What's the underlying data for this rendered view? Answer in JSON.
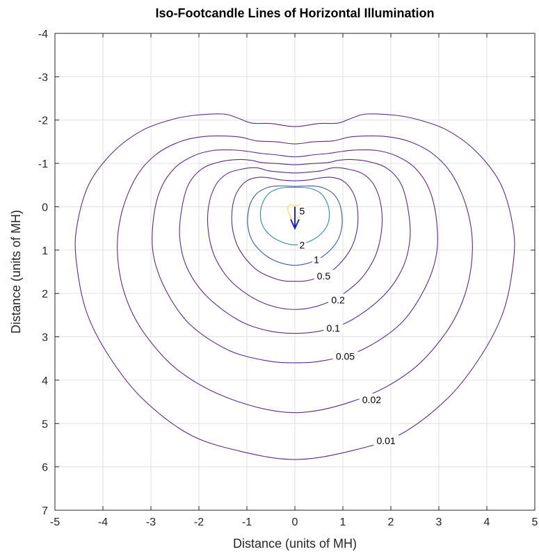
{
  "chart_data": {
    "type": "contour",
    "title": "Iso-Footcandle Lines of Horizontal Illumination",
    "xlabel": "Distance (units of MH)",
    "ylabel": "Distance (units of MH)",
    "xlim": [
      -5,
      5
    ],
    "ylim": [
      -4,
      7
    ],
    "y_axis_reversed": true,
    "x_ticks": [
      "-5",
      "-4",
      "-3",
      "-2",
      "-1",
      "0",
      "1",
      "2",
      "3",
      "4",
      "5"
    ],
    "y_ticks": [
      "-4",
      "-3",
      "-2",
      "-1",
      "0",
      "1",
      "2",
      "3",
      "4",
      "5",
      "6",
      "7"
    ],
    "grid": true,
    "colors": {
      "low_levels": "#5b2c83",
      "mid_level": "#3d5a98",
      "level_2": "#2e8c96",
      "level_5": "#f2e03a",
      "arrow": "#1f1fe0",
      "grid": "#e0e0e0",
      "axes": "#262626"
    },
    "arrow": {
      "from": [
        0,
        0
      ],
      "to": [
        0,
        0.5
      ]
    },
    "levels": [
      {
        "value": 0.01,
        "label": "0.01",
        "label_at": [
          1.9,
          5.4
        ],
        "points": [
          [
            0,
            -1.85
          ],
          [
            -0.5,
            -1.92
          ],
          [
            -0.9,
            -1.93
          ],
          [
            -1.2,
            -2.05
          ],
          [
            -1.5,
            -2.14
          ],
          [
            -2.1,
            -2.11
          ],
          [
            -2.6,
            -2.0
          ],
          [
            -3.2,
            -1.75
          ],
          [
            -3.8,
            -1.25
          ],
          [
            -4.3,
            -0.5
          ],
          [
            -4.55,
            0.5
          ],
          [
            -4.55,
            1.3
          ],
          [
            -4.35,
            2.4
          ],
          [
            -3.9,
            3.4
          ],
          [
            -3.2,
            4.4
          ],
          [
            -2.2,
            5.25
          ],
          [
            -1.1,
            5.65
          ],
          [
            0,
            5.83
          ],
          [
            1.1,
            5.65
          ],
          [
            2.2,
            5.25
          ],
          [
            3.2,
            4.4
          ],
          [
            3.9,
            3.4
          ],
          [
            4.35,
            2.4
          ],
          [
            4.55,
            1.3
          ],
          [
            4.55,
            0.5
          ],
          [
            4.3,
            -0.5
          ],
          [
            3.8,
            -1.25
          ],
          [
            3.2,
            -1.75
          ],
          [
            2.6,
            -2.0
          ],
          [
            2.1,
            -2.11
          ],
          [
            1.5,
            -2.14
          ],
          [
            1.2,
            -2.05
          ],
          [
            0.9,
            -1.93
          ],
          [
            0.5,
            -1.92
          ],
          [
            0,
            -1.85
          ]
        ]
      },
      {
        "value": 0.02,
        "label": "0.02",
        "label_at": [
          1.6,
          4.45
        ],
        "points": [
          [
            0,
            -1.45
          ],
          [
            -0.4,
            -1.5
          ],
          [
            -0.8,
            -1.52
          ],
          [
            -1.1,
            -1.6
          ],
          [
            -1.4,
            -1.63
          ],
          [
            -1.9,
            -1.62
          ],
          [
            -2.4,
            -1.5
          ],
          [
            -2.9,
            -1.2
          ],
          [
            -3.3,
            -0.7
          ],
          [
            -3.6,
            0.1
          ],
          [
            -3.7,
            1.0
          ],
          [
            -3.55,
            2.0
          ],
          [
            -3.15,
            2.9
          ],
          [
            -2.4,
            3.8
          ],
          [
            -1.3,
            4.45
          ],
          [
            0,
            4.75
          ],
          [
            1.3,
            4.45
          ],
          [
            2.4,
            3.8
          ],
          [
            3.15,
            2.9
          ],
          [
            3.55,
            2.0
          ],
          [
            3.7,
            1.0
          ],
          [
            3.6,
            0.1
          ],
          [
            3.3,
            -0.7
          ],
          [
            2.9,
            -1.2
          ],
          [
            2.4,
            -1.5
          ],
          [
            1.9,
            -1.62
          ],
          [
            1.4,
            -1.63
          ],
          [
            1.1,
            -1.6
          ],
          [
            0.8,
            -1.52
          ],
          [
            0.4,
            -1.5
          ],
          [
            0,
            -1.45
          ]
        ]
      },
      {
        "value": 0.05,
        "label": "0.05",
        "label_at": [
          1.05,
          3.45
        ],
        "points": [
          [
            0,
            -1.15
          ],
          [
            -0.4,
            -1.2
          ],
          [
            -0.7,
            -1.23
          ],
          [
            -1.0,
            -1.28
          ],
          [
            -1.3,
            -1.31
          ],
          [
            -1.7,
            -1.3
          ],
          [
            -2.1,
            -1.18
          ],
          [
            -2.5,
            -0.9
          ],
          [
            -2.8,
            -0.4
          ],
          [
            -2.95,
            0.3
          ],
          [
            -2.95,
            1.1
          ],
          [
            -2.7,
            1.9
          ],
          [
            -2.2,
            2.7
          ],
          [
            -1.4,
            3.3
          ],
          [
            -0.6,
            3.55
          ],
          [
            0,
            3.6
          ],
          [
            0.6,
            3.55
          ],
          [
            1.4,
            3.3
          ],
          [
            2.2,
            2.7
          ],
          [
            2.7,
            1.9
          ],
          [
            2.95,
            1.1
          ],
          [
            2.95,
            0.3
          ],
          [
            2.8,
            -0.4
          ],
          [
            2.5,
            -0.9
          ],
          [
            2.1,
            -1.18
          ],
          [
            1.7,
            -1.3
          ],
          [
            1.3,
            -1.31
          ],
          [
            1.0,
            -1.28
          ],
          [
            0.7,
            -1.23
          ],
          [
            0.4,
            -1.2
          ],
          [
            0,
            -1.15
          ]
        ]
      },
      {
        "value": 0.1,
        "label": "0.1",
        "label_at": [
          0.8,
          2.8
        ],
        "points": [
          [
            0,
            -0.97
          ],
          [
            -0.4,
            -1.0
          ],
          [
            -0.7,
            -1.02
          ],
          [
            -0.9,
            -1.07
          ],
          [
            -1.15,
            -1.09
          ],
          [
            -1.5,
            -1.05
          ],
          [
            -1.9,
            -0.9
          ],
          [
            -2.2,
            -0.55
          ],
          [
            -2.35,
            0.0
          ],
          [
            -2.4,
            0.7
          ],
          [
            -2.25,
            1.4
          ],
          [
            -1.85,
            2.05
          ],
          [
            -1.2,
            2.6
          ],
          [
            -0.6,
            2.85
          ],
          [
            0,
            2.92
          ],
          [
            0.6,
            2.85
          ],
          [
            1.2,
            2.6
          ],
          [
            1.85,
            2.05
          ],
          [
            2.25,
            1.4
          ],
          [
            2.4,
            0.7
          ],
          [
            2.35,
            0.0
          ],
          [
            2.2,
            -0.55
          ],
          [
            1.9,
            -0.9
          ],
          [
            1.5,
            -1.05
          ],
          [
            1.15,
            -1.09
          ],
          [
            0.9,
            -1.07
          ],
          [
            0.7,
            -1.02
          ],
          [
            0.4,
            -1.0
          ],
          [
            0,
            -0.97
          ]
        ]
      },
      {
        "value": 0.2,
        "label": "0.2",
        "label_at": [
          0.9,
          2.15
        ],
        "points": [
          [
            0,
            -0.78
          ],
          [
            -0.3,
            -0.8
          ],
          [
            -0.55,
            -0.83
          ],
          [
            -0.8,
            -0.9
          ],
          [
            -1.05,
            -0.88
          ],
          [
            -1.4,
            -0.77
          ],
          [
            -1.65,
            -0.5
          ],
          [
            -1.8,
            0.0
          ],
          [
            -1.8,
            0.6
          ],
          [
            -1.65,
            1.2
          ],
          [
            -1.3,
            1.75
          ],
          [
            -0.7,
            2.2
          ],
          [
            0,
            2.37
          ],
          [
            0.7,
            2.2
          ],
          [
            1.3,
            1.75
          ],
          [
            1.65,
            1.2
          ],
          [
            1.8,
            0.6
          ],
          [
            1.8,
            0.0
          ],
          [
            1.65,
            -0.5
          ],
          [
            1.4,
            -0.77
          ],
          [
            1.05,
            -0.88
          ],
          [
            0.8,
            -0.9
          ],
          [
            0.55,
            -0.83
          ],
          [
            0.3,
            -0.8
          ],
          [
            0,
            -0.78
          ]
        ]
      },
      {
        "value": 0.5,
        "label": "0.5",
        "label_at": [
          0.6,
          1.6
        ],
        "points": [
          [
            0,
            -0.6
          ],
          [
            -0.3,
            -0.62
          ],
          [
            -0.5,
            -0.66
          ],
          [
            -0.75,
            -0.68
          ],
          [
            -1.0,
            -0.6
          ],
          [
            -1.2,
            -0.35
          ],
          [
            -1.3,
            0.0
          ],
          [
            -1.3,
            0.5
          ],
          [
            -1.15,
            1.0
          ],
          [
            -0.8,
            1.45
          ],
          [
            -0.35,
            1.68
          ],
          [
            0,
            1.72
          ],
          [
            0.35,
            1.68
          ],
          [
            0.8,
            1.45
          ],
          [
            1.15,
            1.0
          ],
          [
            1.3,
            0.5
          ],
          [
            1.3,
            0.0
          ],
          [
            1.2,
            -0.35
          ],
          [
            1.0,
            -0.6
          ],
          [
            0.75,
            -0.68
          ],
          [
            0.5,
            -0.66
          ],
          [
            0.3,
            -0.62
          ],
          [
            0,
            -0.6
          ]
        ]
      },
      {
        "value": 1,
        "label": "1",
        "label_at": [
          0.45,
          1.22
        ],
        "points": [
          [
            0,
            -0.47
          ],
          [
            -0.3,
            -0.48
          ],
          [
            -0.55,
            -0.45
          ],
          [
            -0.8,
            -0.3
          ],
          [
            -0.95,
            0.0
          ],
          [
            -0.98,
            0.45
          ],
          [
            -0.85,
            0.85
          ],
          [
            -0.5,
            1.2
          ],
          [
            0,
            1.35
          ],
          [
            0.5,
            1.2
          ],
          [
            0.85,
            0.85
          ],
          [
            0.98,
            0.45
          ],
          [
            0.95,
            0.0
          ],
          [
            0.8,
            -0.3
          ],
          [
            0.55,
            -0.45
          ],
          [
            0.3,
            -0.48
          ],
          [
            0,
            -0.47
          ]
        ]
      },
      {
        "value": 2,
        "label": "2",
        "label_at": [
          0.15,
          0.88
        ],
        "points": [
          [
            0,
            -0.45
          ],
          [
            -0.3,
            -0.43
          ],
          [
            -0.55,
            -0.3
          ],
          [
            -0.7,
            0.0
          ],
          [
            -0.7,
            0.35
          ],
          [
            -0.55,
            0.62
          ],
          [
            -0.3,
            0.8
          ],
          [
            0,
            0.88
          ],
          [
            0.3,
            0.8
          ],
          [
            0.55,
            0.62
          ],
          [
            0.7,
            0.35
          ],
          [
            0.7,
            0.0
          ],
          [
            0.55,
            -0.3
          ],
          [
            0.3,
            -0.43
          ],
          [
            0,
            -0.45
          ]
        ]
      },
      {
        "value": 5,
        "label": "5",
        "label_at": [
          0.15,
          0.1
        ],
        "points": [
          [
            -0.1,
            -0.05
          ],
          [
            -0.15,
            0.05
          ],
          [
            -0.1,
            0.2
          ],
          [
            -0.05,
            0.35
          ],
          [
            0,
            0.45
          ],
          [
            0.05,
            0.35
          ],
          [
            0.1,
            0.2
          ],
          [
            0.15,
            0.05
          ],
          [
            0.1,
            -0.05
          ],
          [
            0,
            -0.02
          ],
          [
            -0.1,
            -0.05
          ]
        ]
      }
    ]
  }
}
